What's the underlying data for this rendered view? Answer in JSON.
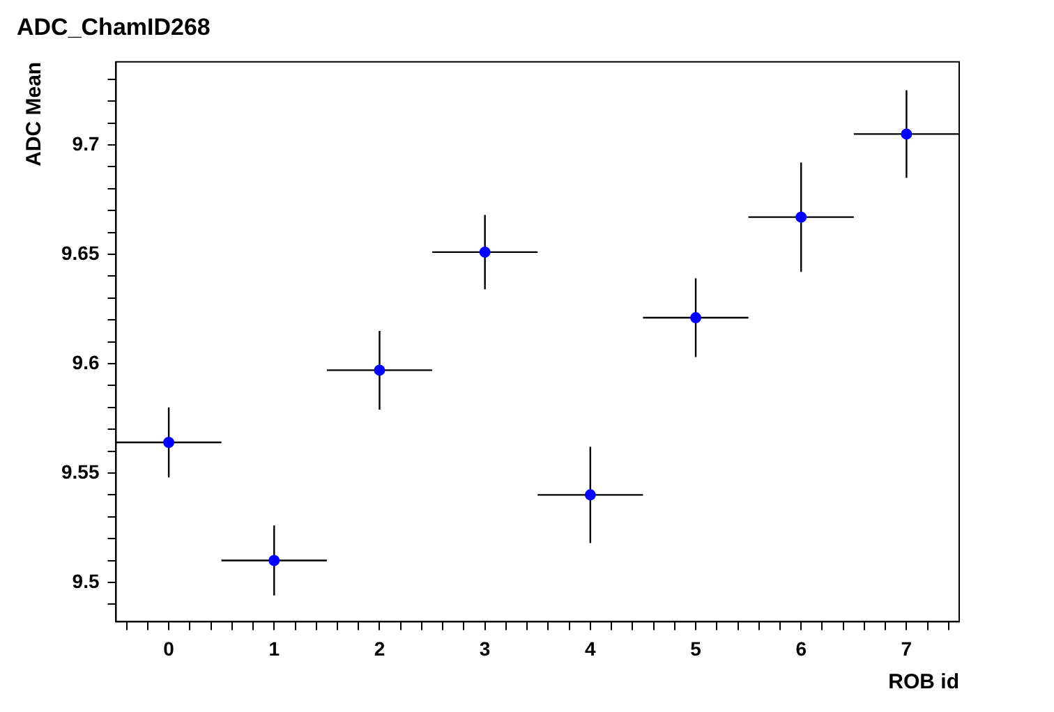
{
  "chart_data": {
    "type": "scatter",
    "title": "ADC_ChamID268",
    "xlabel": "ROB id",
    "ylabel": "ADC Mean",
    "x": [
      0,
      1,
      2,
      3,
      4,
      5,
      6,
      7
    ],
    "values": [
      9.564,
      9.51,
      9.597,
      9.651,
      9.54,
      9.621,
      9.667,
      9.705
    ],
    "errors": [
      0.016,
      0.016,
      0.018,
      0.017,
      0.022,
      0.018,
      0.025,
      0.02
    ],
    "xerrors": [
      0.5,
      0.5,
      0.5,
      0.5,
      0.5,
      0.5,
      0.5,
      0.5
    ],
    "color": "#0000ff",
    "marker": "circle",
    "grid": false,
    "legend": false,
    "xlim": [
      -0.5,
      7.5
    ],
    "ylim": [
      9.482,
      9.738
    ],
    "xticks": [
      {
        "value": -0.4,
        "label": null
      },
      {
        "value": -0.2,
        "label": null
      },
      0,
      {
        "value": 0.2,
        "label": null
      },
      {
        "value": 0.4,
        "label": null
      },
      {
        "value": 0.6,
        "label": null
      },
      {
        "value": 0.8,
        "label": null
      },
      1,
      {
        "value": 1.2,
        "label": null
      },
      {
        "value": 1.4,
        "label": null
      },
      {
        "value": 1.6,
        "label": null
      },
      {
        "value": 1.8,
        "label": null
      },
      2,
      {
        "value": 2.2,
        "label": null
      },
      {
        "value": 2.4,
        "label": null
      },
      {
        "value": 2.6,
        "label": null
      },
      {
        "value": 2.8,
        "label": null
      },
      3,
      {
        "value": 3.2,
        "label": null
      },
      {
        "value": 3.4,
        "label": null
      },
      {
        "value": 3.6,
        "label": null
      },
      {
        "value": 3.8,
        "label": null
      },
      4,
      {
        "value": 4.2,
        "label": null
      },
      {
        "value": 4.4,
        "label": null
      },
      {
        "value": 4.6,
        "label": null
      },
      {
        "value": 4.8,
        "label": null
      },
      5,
      {
        "value": 5.2,
        "label": null
      },
      {
        "value": 5.4,
        "label": null
      },
      {
        "value": 5.6,
        "label": null
      },
      {
        "value": 5.8,
        "label": null
      },
      6,
      {
        "value": 6.2,
        "label": null
      },
      {
        "value": 6.4,
        "label": null
      },
      {
        "value": 6.6,
        "label": null
      },
      {
        "value": 6.8,
        "label": null
      },
      7,
      {
        "value": 7.2,
        "label": null
      },
      {
        "value": 7.4,
        "label": null
      }
    ],
    "yticks": [
      {
        "value": 9.49,
        "label": null
      },
      9.5,
      {
        "value": 9.51,
        "label": null
      },
      {
        "value": 9.52,
        "label": null
      },
      {
        "value": 9.53,
        "label": null
      },
      {
        "value": 9.54,
        "label": null
      },
      9.55,
      {
        "value": 9.56,
        "label": null
      },
      {
        "value": 9.57,
        "label": null
      },
      {
        "value": 9.58,
        "label": null
      },
      {
        "value": 9.59,
        "label": null
      },
      9.6,
      {
        "value": 9.61,
        "label": null
      },
      {
        "value": 9.62,
        "label": null
      },
      {
        "value": 9.63,
        "label": null
      },
      {
        "value": 9.64,
        "label": null
      },
      9.65,
      {
        "value": 9.66,
        "label": null
      },
      {
        "value": 9.67,
        "label": null
      },
      {
        "value": 9.68,
        "label": null
      },
      {
        "value": 9.69,
        "label": null
      },
      9.7,
      {
        "value": 9.71,
        "label": null
      },
      {
        "value": 9.72,
        "label": null
      },
      {
        "value": 9.73,
        "label": null
      }
    ]
  }
}
